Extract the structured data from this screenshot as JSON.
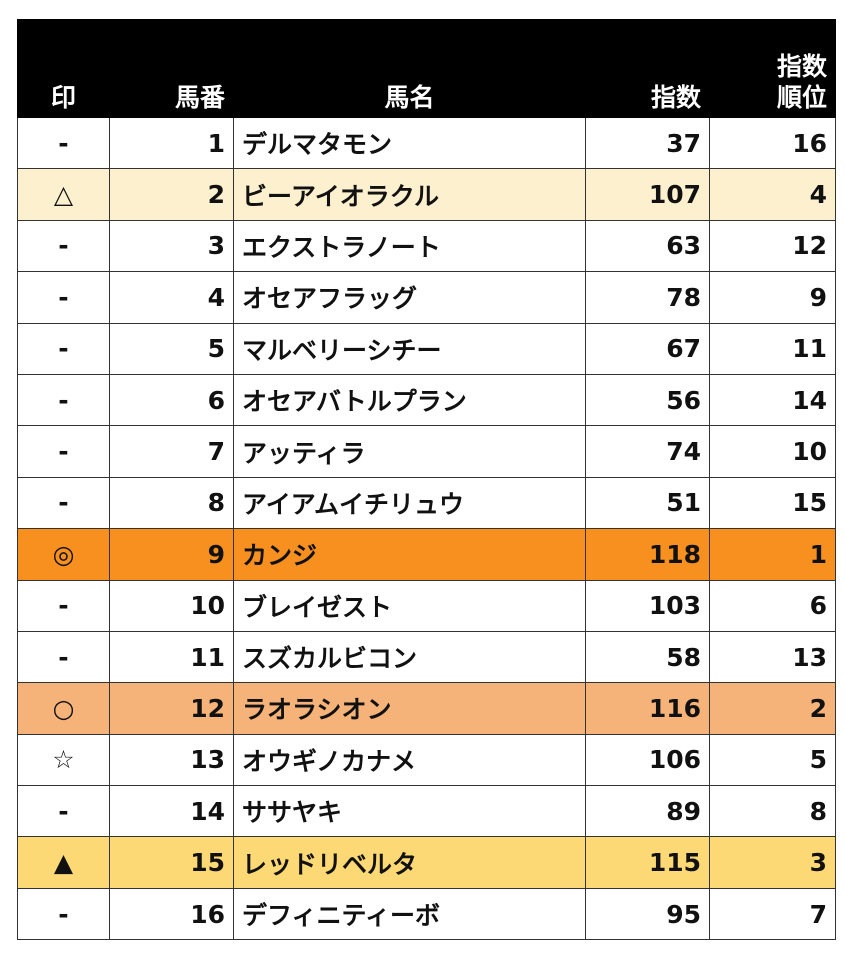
{
  "headers": {
    "mark": "印",
    "number": "馬番",
    "name": "馬名",
    "index": "指数",
    "rank_line1": "指数",
    "rank_line2": "順位"
  },
  "colors": {
    "header_bg": "#000000",
    "header_text": "#ffffff",
    "highlight_orange": "#f7901e",
    "highlight_peach": "#f5b37a",
    "highlight_yellow": "#fcd974",
    "highlight_cream": "#fdf0cf"
  },
  "rows": [
    {
      "mark": "-",
      "number": "1",
      "name": "デルマタモン",
      "index": "37",
      "rank": "16",
      "bg": "#ffffff"
    },
    {
      "mark": "△",
      "number": "2",
      "name": "ビーアイオラクル",
      "index": "107",
      "rank": "4",
      "bg": "#fdf0cf"
    },
    {
      "mark": "-",
      "number": "3",
      "name": "エクストラノート",
      "index": "63",
      "rank": "12",
      "bg": "#ffffff"
    },
    {
      "mark": "-",
      "number": "4",
      "name": "オセアフラッグ",
      "index": "78",
      "rank": "9",
      "bg": "#ffffff"
    },
    {
      "mark": "-",
      "number": "5",
      "name": "マルベリーシチー",
      "index": "67",
      "rank": "11",
      "bg": "#ffffff"
    },
    {
      "mark": "-",
      "number": "6",
      "name": "オセアバトルプラン",
      "index": "56",
      "rank": "14",
      "bg": "#ffffff"
    },
    {
      "mark": "-",
      "number": "7",
      "name": "アッティラ",
      "index": "74",
      "rank": "10",
      "bg": "#ffffff"
    },
    {
      "mark": "-",
      "number": "8",
      "name": "アイアムイチリュウ",
      "index": "51",
      "rank": "15",
      "bg": "#ffffff"
    },
    {
      "mark": "◎",
      "number": "9",
      "name": "カンジ",
      "index": "118",
      "rank": "1",
      "bg": "#f7901e"
    },
    {
      "mark": "-",
      "number": "10",
      "name": "ブレイゼスト",
      "index": "103",
      "rank": "6",
      "bg": "#ffffff"
    },
    {
      "mark": "-",
      "number": "11",
      "name": "スズカルビコン",
      "index": "58",
      "rank": "13",
      "bg": "#ffffff"
    },
    {
      "mark": "○",
      "number": "12",
      "name": "ラオラシオン",
      "index": "116",
      "rank": "2",
      "bg": "#f5b37a"
    },
    {
      "mark": "☆",
      "number": "13",
      "name": "オウギノカナメ",
      "index": "106",
      "rank": "5",
      "bg": "#ffffff"
    },
    {
      "mark": "-",
      "number": "14",
      "name": "ササヤキ",
      "index": "89",
      "rank": "8",
      "bg": "#ffffff"
    },
    {
      "mark": "▲",
      "number": "15",
      "name": "レッドリベルタ",
      "index": "115",
      "rank": "3",
      "bg": "#fcd974"
    },
    {
      "mark": "-",
      "number": "16",
      "name": "デフィニティーボ",
      "index": "95",
      "rank": "7",
      "bg": "#ffffff"
    }
  ]
}
